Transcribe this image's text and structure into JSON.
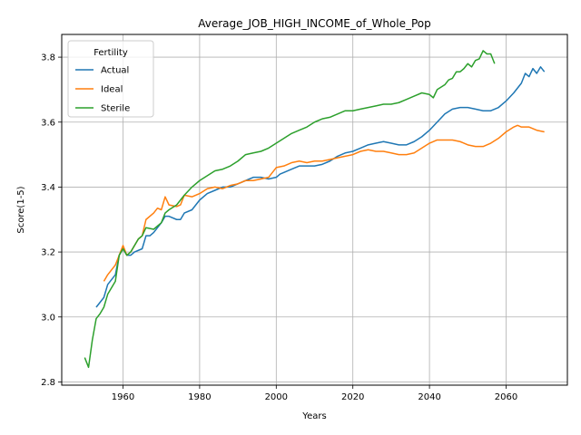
{
  "chart_data": {
    "type": "line",
    "title": "Average_JOB_HIGH_INCOME_of_Whole_Pop",
    "xlabel": "Years",
    "ylabel": "Score(1-5)",
    "xlim": [
      1944,
      2076
    ],
    "ylim": [
      2.79,
      3.87
    ],
    "xticks": [
      1960,
      1980,
      2000,
      2020,
      2040,
      2060
    ],
    "yticks": [
      2.8,
      3.0,
      3.2,
      3.4,
      3.6,
      3.8
    ],
    "grid": true,
    "legend": {
      "title": "Fertility",
      "placement": "top-left"
    },
    "series": [
      {
        "name": "Actual",
        "color": "#1f77b4",
        "points": [
          [
            1953,
            3.03
          ],
          [
            1955,
            3.06
          ],
          [
            1956,
            3.1
          ],
          [
            1958,
            3.13
          ],
          [
            1959,
            3.19
          ],
          [
            1960,
            3.21
          ],
          [
            1961,
            3.19
          ],
          [
            1962,
            3.19
          ],
          [
            1963,
            3.2
          ],
          [
            1965,
            3.21
          ],
          [
            1966,
            3.25
          ],
          [
            1967,
            3.25
          ],
          [
            1968,
            3.26
          ],
          [
            1970,
            3.29
          ],
          [
            1971,
            3.31
          ],
          [
            1972,
            3.31
          ],
          [
            1974,
            3.3
          ],
          [
            1975,
            3.3
          ],
          [
            1976,
            3.32
          ],
          [
            1978,
            3.33
          ],
          [
            1980,
            3.36
          ],
          [
            1982,
            3.38
          ],
          [
            1984,
            3.39
          ],
          [
            1986,
            3.4
          ],
          [
            1988,
            3.4
          ],
          [
            1990,
            3.41
          ],
          [
            1992,
            3.42
          ],
          [
            1994,
            3.43
          ],
          [
            1996,
            3.43
          ],
          [
            1998,
            3.425
          ],
          [
            2000,
            3.43
          ],
          [
            2001,
            3.44
          ],
          [
            2002,
            3.445
          ],
          [
            2004,
            3.455
          ],
          [
            2006,
            3.465
          ],
          [
            2008,
            3.465
          ],
          [
            2010,
            3.465
          ],
          [
            2012,
            3.47
          ],
          [
            2014,
            3.48
          ],
          [
            2016,
            3.495
          ],
          [
            2018,
            3.505
          ],
          [
            2020,
            3.51
          ],
          [
            2022,
            3.52
          ],
          [
            2024,
            3.53
          ],
          [
            2026,
            3.535
          ],
          [
            2028,
            3.54
          ],
          [
            2030,
            3.535
          ],
          [
            2032,
            3.53
          ],
          [
            2034,
            3.53
          ],
          [
            2036,
            3.54
          ],
          [
            2038,
            3.555
          ],
          [
            2040,
            3.575
          ],
          [
            2042,
            3.6
          ],
          [
            2044,
            3.625
          ],
          [
            2046,
            3.64
          ],
          [
            2048,
            3.645
          ],
          [
            2050,
            3.645
          ],
          [
            2052,
            3.64
          ],
          [
            2054,
            3.635
          ],
          [
            2056,
            3.635
          ],
          [
            2058,
            3.645
          ],
          [
            2060,
            3.665
          ],
          [
            2062,
            3.69
          ],
          [
            2064,
            3.72
          ],
          [
            2065,
            3.75
          ],
          [
            2066,
            3.74
          ],
          [
            2067,
            3.765
          ],
          [
            2068,
            3.75
          ],
          [
            2069,
            3.77
          ],
          [
            2070,
            3.755
          ]
        ]
      },
      {
        "name": "Ideal",
        "color": "#ff7f0e",
        "points": [
          [
            1955,
            3.11
          ],
          [
            1956,
            3.13
          ],
          [
            1958,
            3.16
          ],
          [
            1959,
            3.19
          ],
          [
            1960,
            3.22
          ],
          [
            1961,
            3.19
          ],
          [
            1962,
            3.2
          ],
          [
            1964,
            3.24
          ],
          [
            1965,
            3.25
          ],
          [
            1966,
            3.3
          ],
          [
            1968,
            3.32
          ],
          [
            1969,
            3.335
          ],
          [
            1970,
            3.33
          ],
          [
            1971,
            3.37
          ],
          [
            1972,
            3.345
          ],
          [
            1974,
            3.34
          ],
          [
            1975,
            3.345
          ],
          [
            1976,
            3.375
          ],
          [
            1978,
            3.37
          ],
          [
            1980,
            3.38
          ],
          [
            1982,
            3.395
          ],
          [
            1984,
            3.4
          ],
          [
            1986,
            3.395
          ],
          [
            1988,
            3.405
          ],
          [
            1990,
            3.41
          ],
          [
            1992,
            3.42
          ],
          [
            1994,
            3.42
          ],
          [
            1996,
            3.425
          ],
          [
            1998,
            3.43
          ],
          [
            2000,
            3.46
          ],
          [
            2002,
            3.465
          ],
          [
            2004,
            3.475
          ],
          [
            2006,
            3.48
          ],
          [
            2008,
            3.475
          ],
          [
            2010,
            3.48
          ],
          [
            2012,
            3.48
          ],
          [
            2014,
            3.485
          ],
          [
            2016,
            3.49
          ],
          [
            2018,
            3.495
          ],
          [
            2020,
            3.5
          ],
          [
            2022,
            3.51
          ],
          [
            2024,
            3.515
          ],
          [
            2026,
            3.51
          ],
          [
            2028,
            3.51
          ],
          [
            2030,
            3.505
          ],
          [
            2032,
            3.5
          ],
          [
            2034,
            3.5
          ],
          [
            2036,
            3.505
          ],
          [
            2038,
            3.52
          ],
          [
            2040,
            3.535
          ],
          [
            2042,
            3.545
          ],
          [
            2044,
            3.545
          ],
          [
            2046,
            3.545
          ],
          [
            2048,
            3.54
          ],
          [
            2050,
            3.53
          ],
          [
            2052,
            3.525
          ],
          [
            2054,
            3.525
          ],
          [
            2056,
            3.535
          ],
          [
            2058,
            3.55
          ],
          [
            2060,
            3.57
          ],
          [
            2062,
            3.585
          ],
          [
            2063,
            3.59
          ],
          [
            2064,
            3.585
          ],
          [
            2066,
            3.585
          ],
          [
            2068,
            3.575
          ],
          [
            2070,
            3.57
          ]
        ]
      },
      {
        "name": "Sterile",
        "color": "#2ca02c",
        "points": [
          [
            1950,
            2.875
          ],
          [
            1951,
            2.845
          ],
          [
            1952,
            2.93
          ],
          [
            1953,
            2.995
          ],
          [
            1954,
            3.01
          ],
          [
            1955,
            3.03
          ],
          [
            1956,
            3.07
          ],
          [
            1957,
            3.09
          ],
          [
            1958,
            3.11
          ],
          [
            1959,
            3.19
          ],
          [
            1960,
            3.21
          ],
          [
            1961,
            3.19
          ],
          [
            1962,
            3.2
          ],
          [
            1964,
            3.24
          ],
          [
            1965,
            3.25
          ],
          [
            1966,
            3.275
          ],
          [
            1968,
            3.27
          ],
          [
            1970,
            3.29
          ],
          [
            1971,
            3.32
          ],
          [
            1972,
            3.33
          ],
          [
            1974,
            3.345
          ],
          [
            1976,
            3.375
          ],
          [
            1978,
            3.4
          ],
          [
            1980,
            3.42
          ],
          [
            1982,
            3.435
          ],
          [
            1984,
            3.45
          ],
          [
            1986,
            3.455
          ],
          [
            1988,
            3.465
          ],
          [
            1990,
            3.48
          ],
          [
            1992,
            3.5
          ],
          [
            1994,
            3.505
          ],
          [
            1996,
            3.51
          ],
          [
            1998,
            3.52
          ],
          [
            2000,
            3.535
          ],
          [
            2002,
            3.55
          ],
          [
            2004,
            3.565
          ],
          [
            2006,
            3.575
          ],
          [
            2008,
            3.585
          ],
          [
            2010,
            3.6
          ],
          [
            2012,
            3.61
          ],
          [
            2014,
            3.615
          ],
          [
            2016,
            3.625
          ],
          [
            2018,
            3.635
          ],
          [
            2020,
            3.635
          ],
          [
            2022,
            3.64
          ],
          [
            2024,
            3.645
          ],
          [
            2026,
            3.65
          ],
          [
            2028,
            3.655
          ],
          [
            2030,
            3.655
          ],
          [
            2032,
            3.66
          ],
          [
            2034,
            3.67
          ],
          [
            2036,
            3.68
          ],
          [
            2038,
            3.69
          ],
          [
            2040,
            3.685
          ],
          [
            2041,
            3.675
          ],
          [
            2042,
            3.7
          ],
          [
            2044,
            3.715
          ],
          [
            2045,
            3.73
          ],
          [
            2046,
            3.735
          ],
          [
            2047,
            3.755
          ],
          [
            2048,
            3.755
          ],
          [
            2049,
            3.765
          ],
          [
            2050,
            3.78
          ],
          [
            2051,
            3.77
          ],
          [
            2052,
            3.79
          ],
          [
            2053,
            3.795
          ],
          [
            2054,
            3.82
          ],
          [
            2055,
            3.81
          ],
          [
            2056,
            3.81
          ],
          [
            2057,
            3.78
          ]
        ]
      }
    ]
  }
}
